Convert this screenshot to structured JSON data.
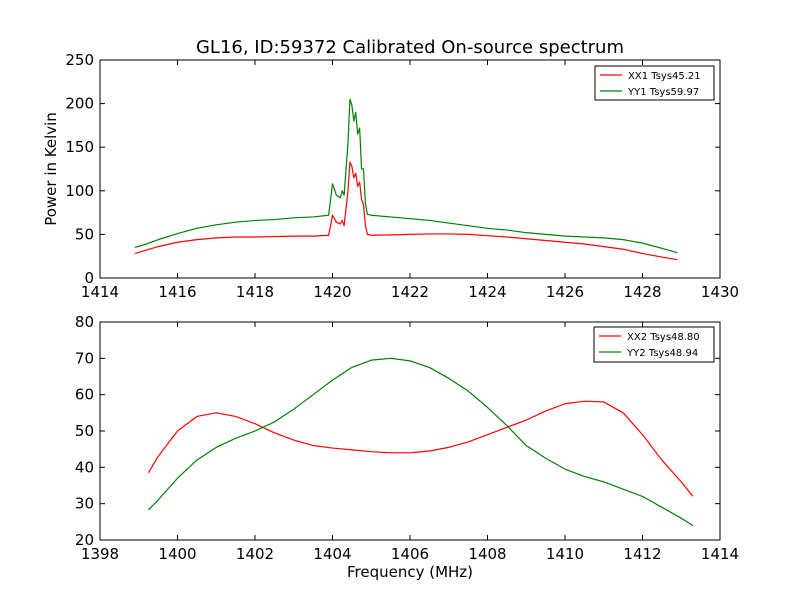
{
  "figure": {
    "title": "GL16, ID:59372 Calibrated On-source spectrum"
  },
  "chart_data": [
    {
      "type": "line",
      "title": "GL16, ID:59372 Calibrated On-source spectrum",
      "xlabel": "",
      "ylabel": "Power in Kelvin",
      "xlim": [
        1414,
        1430
      ],
      "ylim": [
        0,
        250
      ],
      "xticks": [
        "1414",
        "1416",
        "1418",
        "1420",
        "1422",
        "1424",
        "1426",
        "1428",
        "1430"
      ],
      "yticks": [
        "0",
        "50",
        "100",
        "150",
        "200",
        "250"
      ],
      "grid": false,
      "legend_position": "top-right",
      "series": [
        {
          "name": "XX1 Tsys45.21",
          "color": "#ff0000",
          "x": [
            1414.9,
            1415.2,
            1415.5,
            1416.0,
            1416.5,
            1417.0,
            1417.5,
            1418.0,
            1418.5,
            1419.0,
            1419.5,
            1419.9,
            1419.95,
            1420.0,
            1420.1,
            1420.2,
            1420.25,
            1420.3,
            1420.4,
            1420.45,
            1420.5,
            1420.55,
            1420.6,
            1420.65,
            1420.7,
            1420.75,
            1420.8,
            1420.85,
            1420.9,
            1421.0,
            1421.5,
            1422.0,
            1422.5,
            1423.0,
            1423.5,
            1424.0,
            1424.5,
            1425.0,
            1425.5,
            1426.0,
            1426.5,
            1427.0,
            1427.5,
            1428.0,
            1428.5,
            1428.9
          ],
          "y": [
            28,
            32,
            36,
            41,
            44,
            46,
            47,
            47,
            47.5,
            48,
            48,
            49,
            60,
            72,
            64,
            62,
            66,
            60,
            100,
            133,
            128,
            115,
            120,
            105,
            110,
            90,
            84,
            60,
            50,
            49,
            49.5,
            50,
            50.5,
            50.5,
            50,
            48.5,
            47,
            45,
            43,
            41,
            39,
            36,
            33,
            28,
            24,
            21
          ]
        },
        {
          "name": "YY1 Tsys59.97",
          "color": "#008000",
          "x": [
            1414.9,
            1415.2,
            1415.5,
            1416.0,
            1416.5,
            1417.0,
            1417.5,
            1418.0,
            1418.5,
            1419.0,
            1419.5,
            1419.9,
            1419.95,
            1420.0,
            1420.1,
            1420.2,
            1420.25,
            1420.3,
            1420.4,
            1420.45,
            1420.5,
            1420.55,
            1420.6,
            1420.65,
            1420.7,
            1420.75,
            1420.8,
            1420.85,
            1420.9,
            1421.0,
            1421.5,
            1422.0,
            1422.5,
            1423.0,
            1423.5,
            1424.0,
            1424.5,
            1425.0,
            1425.5,
            1426.0,
            1426.5,
            1427.0,
            1427.5,
            1428.0,
            1428.5,
            1428.9
          ],
          "y": [
            35,
            39,
            44,
            51,
            57,
            61,
            64,
            66,
            67,
            69,
            70,
            72,
            90,
            108,
            95,
            92,
            100,
            95,
            155,
            205,
            198,
            180,
            190,
            165,
            172,
            125,
            125,
            85,
            73,
            72,
            70,
            68,
            66,
            63,
            60,
            57,
            55,
            52,
            50,
            48,
            47,
            46,
            44,
            40,
            34,
            29
          ]
        }
      ]
    },
    {
      "type": "line",
      "title": "",
      "xlabel": "Frequency (MHz)",
      "ylabel": "",
      "xlim": [
        1398,
        1414
      ],
      "ylim": [
        20,
        80
      ],
      "xticks": [
        "1398",
        "1400",
        "1402",
        "1404",
        "1406",
        "1408",
        "1410",
        "1412",
        "1414"
      ],
      "yticks": [
        "20",
        "30",
        "40",
        "50",
        "60",
        "70",
        "80"
      ],
      "grid": false,
      "legend_position": "top-right",
      "series": [
        {
          "name": "XX2 Tsys48.80",
          "color": "#ff0000",
          "x": [
            1399.25,
            1399.5,
            1400.0,
            1400.5,
            1401.0,
            1401.5,
            1402.0,
            1402.5,
            1403.0,
            1403.5,
            1404.0,
            1404.5,
            1405.0,
            1405.5,
            1406.0,
            1406.5,
            1407.0,
            1407.5,
            1408.0,
            1408.5,
            1409.0,
            1409.5,
            1410.0,
            1410.5,
            1411.0,
            1411.5,
            1412.0,
            1412.5,
            1413.0,
            1413.3
          ],
          "y": [
            38.5,
            43,
            50,
            54,
            55,
            54,
            52,
            49.5,
            47.5,
            46,
            45.3,
            44.8,
            44.3,
            44.0,
            44.0,
            44.5,
            45.5,
            47,
            49,
            51,
            53,
            55.5,
            57.5,
            58.2,
            58,
            55,
            49,
            42,
            36,
            32
          ]
        },
        {
          "name": "YY2 Tsys48.94",
          "color": "#008000",
          "x": [
            1399.25,
            1399.5,
            1400.0,
            1400.5,
            1401.0,
            1401.5,
            1402.0,
            1402.5,
            1403.0,
            1403.5,
            1404.0,
            1404.5,
            1405.0,
            1405.5,
            1406.0,
            1406.5,
            1407.0,
            1407.5,
            1408.0,
            1408.5,
            1409.0,
            1409.5,
            1410.0,
            1410.5,
            1411.0,
            1411.5,
            1412.0,
            1412.5,
            1413.0,
            1413.3
          ],
          "y": [
            28.3,
            31,
            37,
            42,
            45.5,
            48,
            50,
            52.5,
            56,
            60,
            64,
            67.5,
            69.5,
            70,
            69.3,
            67.5,
            64.5,
            61,
            56.5,
            51.5,
            46,
            42.5,
            39.5,
            37.5,
            36,
            34,
            32,
            29,
            26,
            24
          ]
        }
      ]
    }
  ]
}
